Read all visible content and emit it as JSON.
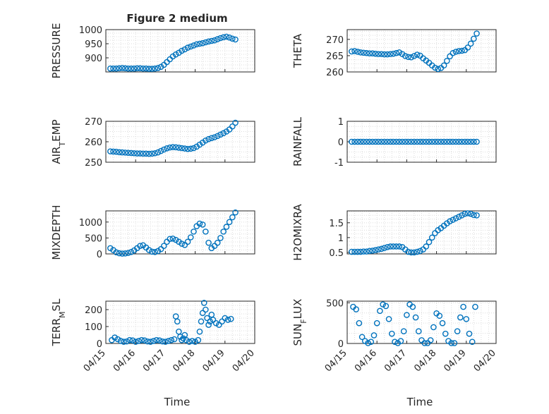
{
  "figure": {
    "title": "Figure 2 medium",
    "xlabel": "Time",
    "x_tick_labels": [
      "04/15",
      "04/16",
      "04/17",
      "04/18",
      "04/19",
      "04/20"
    ],
    "marker_color": "#0072BD"
  },
  "chart_data": [
    {
      "type": "scatter",
      "ylabel": "PRESSURE",
      "title": "Figure 2 medium",
      "xlim": [
        "04/15",
        "04/20"
      ],
      "ylim": [
        850,
        1000
      ],
      "yticks": [
        900,
        950,
        1000
      ],
      "grid": true,
      "x": [
        15.15,
        15.25,
        15.35,
        15.45,
        15.55,
        15.65,
        15.75,
        15.85,
        15.95,
        16.05,
        16.15,
        16.25,
        16.35,
        16.45,
        16.55,
        16.65,
        16.75,
        16.85,
        16.95,
        17.05,
        17.15,
        17.25,
        17.35,
        17.45,
        17.55,
        17.65,
        17.75,
        17.85,
        17.95,
        18.05,
        18.15,
        18.25,
        18.35,
        18.45,
        18.55,
        18.65,
        18.75,
        18.85,
        18.95,
        19.05,
        19.15,
        19.25,
        19.35
      ],
      "y": [
        862,
        862,
        862,
        863,
        864,
        863,
        862,
        862,
        862,
        863,
        863,
        862,
        862,
        861,
        861,
        862,
        864,
        868,
        875,
        885,
        895,
        905,
        912,
        918,
        925,
        930,
        936,
        940,
        944,
        948,
        950,
        952,
        955,
        958,
        960,
        962,
        966,
        970,
        973,
        975,
        972,
        968,
        965
      ]
    },
    {
      "type": "scatter",
      "ylabel": "THETA",
      "xlim": [
        "04/15",
        "04/20"
      ],
      "ylim": [
        260,
        273
      ],
      "yticks": [
        260,
        265,
        270
      ],
      "grid": true,
      "x": [
        15.15,
        15.25,
        15.35,
        15.45,
        15.55,
        15.65,
        15.75,
        15.85,
        15.95,
        16.05,
        16.15,
        16.25,
        16.35,
        16.45,
        16.55,
        16.65,
        16.75,
        16.85,
        16.95,
        17.05,
        17.15,
        17.25,
        17.35,
        17.45,
        17.55,
        17.65,
        17.75,
        17.85,
        17.95,
        18.05,
        18.15,
        18.25,
        18.35,
        18.45,
        18.55,
        18.65,
        18.75,
        18.85,
        18.95,
        19.05,
        19.15,
        19.25,
        19.35
      ],
      "y": [
        266.3,
        266.4,
        266.2,
        266.0,
        265.9,
        265.8,
        265.7,
        265.7,
        265.6,
        265.5,
        265.5,
        265.4,
        265.4,
        265.5,
        265.6,
        265.8,
        266.0,
        265.5,
        264.9,
        264.6,
        264.5,
        264.9,
        265.3,
        265.0,
        264.2,
        263.5,
        262.8,
        262.0,
        261.3,
        260.9,
        261.2,
        262.0,
        263.4,
        264.8,
        265.8,
        266.2,
        266.4,
        266.5,
        266.7,
        267.5,
        268.7,
        270.2,
        271.8
      ]
    },
    {
      "type": "scatter",
      "ylabel": "AIR_TEMP",
      "xlim": [
        "04/15",
        "04/20"
      ],
      "ylim": [
        250,
        270
      ],
      "yticks": [
        250,
        260,
        270
      ],
      "grid": true,
      "x": [
        15.15,
        15.25,
        15.35,
        15.45,
        15.55,
        15.65,
        15.75,
        15.85,
        15.95,
        16.05,
        16.15,
        16.25,
        16.35,
        16.45,
        16.55,
        16.65,
        16.75,
        16.85,
        16.95,
        17.05,
        17.15,
        17.25,
        17.35,
        17.45,
        17.55,
        17.65,
        17.75,
        17.85,
        17.95,
        18.05,
        18.15,
        18.25,
        18.35,
        18.45,
        18.55,
        18.65,
        18.75,
        18.85,
        18.95,
        19.05,
        19.15,
        19.25,
        19.35
      ],
      "y": [
        255.3,
        255.2,
        255.1,
        254.9,
        254.8,
        254.7,
        254.6,
        254.5,
        254.4,
        254.3,
        254.3,
        254.2,
        254.2,
        254.1,
        254.2,
        254.4,
        254.8,
        255.5,
        256.2,
        256.8,
        257.2,
        257.4,
        257.3,
        257.1,
        256.9,
        256.7,
        256.5,
        256.6,
        256.9,
        257.6,
        258.6,
        259.6,
        260.6,
        261.3,
        261.8,
        262.2,
        262.8,
        263.5,
        264.2,
        265.0,
        266.0,
        267.5,
        269.3
      ]
    },
    {
      "type": "scatter",
      "ylabel": "RAINFALL",
      "xlim": [
        "04/15",
        "04/20"
      ],
      "ylim": [
        -1,
        1
      ],
      "yticks": [
        -1,
        0,
        1
      ],
      "grid": true,
      "x": [
        15.15,
        15.25,
        15.35,
        15.45,
        15.55,
        15.65,
        15.75,
        15.85,
        15.95,
        16.05,
        16.15,
        16.25,
        16.35,
        16.45,
        16.55,
        16.65,
        16.75,
        16.85,
        16.95,
        17.05,
        17.15,
        17.25,
        17.35,
        17.45,
        17.55,
        17.65,
        17.75,
        17.85,
        17.95,
        18.05,
        18.15,
        18.25,
        18.35,
        18.45,
        18.55,
        18.65,
        18.75,
        18.85,
        18.95,
        19.05,
        19.15,
        19.25,
        19.35
      ],
      "y": [
        0,
        0,
        0,
        0,
        0,
        0,
        0,
        0,
        0,
        0,
        0,
        0,
        0,
        0,
        0,
        0,
        0,
        0,
        0,
        0,
        0,
        0,
        0,
        0,
        0,
        0,
        0,
        0,
        0,
        0,
        0,
        0,
        0,
        0,
        0,
        0,
        0,
        0,
        0,
        0,
        0,
        0,
        0
      ]
    },
    {
      "type": "scatter",
      "ylabel": "MIXDEPTH",
      "xlim": [
        "04/15",
        "04/20"
      ],
      "ylim": [
        0,
        1350
      ],
      "yticks": [
        0,
        500,
        1000
      ],
      "grid": true,
      "x": [
        15.15,
        15.25,
        15.35,
        15.45,
        15.55,
        15.65,
        15.75,
        15.85,
        15.95,
        16.05,
        16.15,
        16.25,
        16.35,
        16.45,
        16.55,
        16.65,
        16.75,
        16.85,
        16.95,
        17.05,
        17.15,
        17.25,
        17.35,
        17.45,
        17.55,
        17.65,
        17.75,
        17.85,
        17.95,
        18.05,
        18.15,
        18.25,
        18.35,
        18.45,
        18.55,
        18.65,
        18.75,
        18.85,
        18.95,
        19.05,
        19.15,
        19.25,
        19.35
      ],
      "y": [
        180,
        120,
        50,
        20,
        10,
        15,
        30,
        60,
        110,
        180,
        250,
        270,
        200,
        120,
        70,
        60,
        90,
        150,
        250,
        380,
        470,
        480,
        440,
        380,
        320,
        280,
        380,
        520,
        700,
        870,
        950,
        920,
        700,
        350,
        180,
        250,
        350,
        500,
        700,
        850,
        1000,
        1150,
        1300
      ]
    },
    {
      "type": "scatter",
      "ylabel": "H2OMIXRA",
      "xlim": [
        "04/15",
        "04/20"
      ],
      "ylim": [
        0.45,
        1.9
      ],
      "yticks": [
        0.5,
        1,
        1.5
      ],
      "grid": true,
      "x": [
        15.15,
        15.25,
        15.35,
        15.45,
        15.55,
        15.65,
        15.75,
        15.85,
        15.95,
        16.05,
        16.15,
        16.25,
        16.35,
        16.45,
        16.55,
        16.65,
        16.75,
        16.85,
        16.95,
        17.05,
        17.15,
        17.25,
        17.35,
        17.45,
        17.55,
        17.65,
        17.75,
        17.85,
        17.95,
        18.05,
        18.15,
        18.25,
        18.35,
        18.45,
        18.55,
        18.65,
        18.75,
        18.85,
        18.95,
        19.05,
        19.15,
        19.25,
        19.35
      ],
      "y": [
        0.52,
        0.52,
        0.52,
        0.52,
        0.53,
        0.53,
        0.55,
        0.56,
        0.58,
        0.6,
        0.62,
        0.65,
        0.68,
        0.7,
        0.7,
        0.7,
        0.7,
        0.68,
        0.6,
        0.52,
        0.5,
        0.5,
        0.52,
        0.55,
        0.6,
        0.7,
        0.85,
        1.0,
        1.15,
        1.25,
        1.32,
        1.4,
        1.48,
        1.55,
        1.6,
        1.65,
        1.7,
        1.75,
        1.8,
        1.82,
        1.8,
        1.76,
        1.75
      ]
    },
    {
      "type": "scatter",
      "ylabel": "TERR_MSL",
      "xlim": [
        "04/15",
        "04/20"
      ],
      "ylim": [
        0,
        250
      ],
      "yticks": [
        0,
        100,
        200
      ],
      "grid": true,
      "x": [
        15.2,
        15.3,
        15.4,
        15.5,
        15.6,
        15.7,
        15.8,
        15.9,
        16.0,
        16.1,
        16.2,
        16.3,
        16.4,
        16.5,
        16.6,
        16.7,
        16.8,
        16.9,
        17.0,
        17.1,
        17.2,
        17.3,
        17.35,
        17.4,
        17.45,
        17.5,
        17.55,
        17.6,
        17.65,
        17.7,
        17.8,
        17.9,
        18.0,
        18.1,
        18.15,
        18.2,
        18.25,
        18.3,
        18.35,
        18.4,
        18.45,
        18.5,
        18.55,
        18.6,
        18.7,
        18.8,
        18.9,
        19.0,
        19.1,
        19.2
      ],
      "y": [
        20,
        35,
        25,
        15,
        10,
        12,
        20,
        18,
        10,
        15,
        20,
        18,
        12,
        10,
        15,
        20,
        18,
        12,
        10,
        15,
        20,
        25,
        160,
        130,
        70,
        40,
        20,
        30,
        50,
        20,
        10,
        15,
        10,
        20,
        70,
        130,
        180,
        240,
        200,
        150,
        110,
        130,
        170,
        140,
        120,
        110,
        130,
        150,
        140,
        145
      ]
    },
    {
      "type": "scatter",
      "ylabel": "SUN_FLUX",
      "xlim": [
        "04/15",
        "04/20"
      ],
      "ylim": [
        0,
        520
      ],
      "yticks": [
        0,
        500
      ],
      "grid": true,
      "x": [
        15.2,
        15.3,
        15.4,
        15.5,
        15.6,
        15.7,
        15.8,
        15.9,
        16.0,
        16.1,
        16.2,
        16.3,
        16.4,
        16.5,
        16.6,
        16.7,
        16.8,
        16.9,
        17.0,
        17.1,
        17.2,
        17.3,
        17.4,
        17.5,
        17.6,
        17.7,
        17.8,
        17.9,
        18.0,
        18.1,
        18.2,
        18.3,
        18.4,
        18.5,
        18.6,
        18.7,
        18.8,
        18.9,
        19.0,
        19.1,
        19.2,
        19.3
      ],
      "y": [
        450,
        420,
        250,
        80,
        30,
        5,
        20,
        100,
        250,
        400,
        480,
        460,
        300,
        120,
        20,
        5,
        30,
        150,
        350,
        480,
        450,
        320,
        150,
        40,
        5,
        5,
        40,
        200,
        370,
        340,
        250,
        120,
        30,
        5,
        5,
        150,
        320,
        450,
        300,
        120,
        20,
        450
      ]
    }
  ]
}
